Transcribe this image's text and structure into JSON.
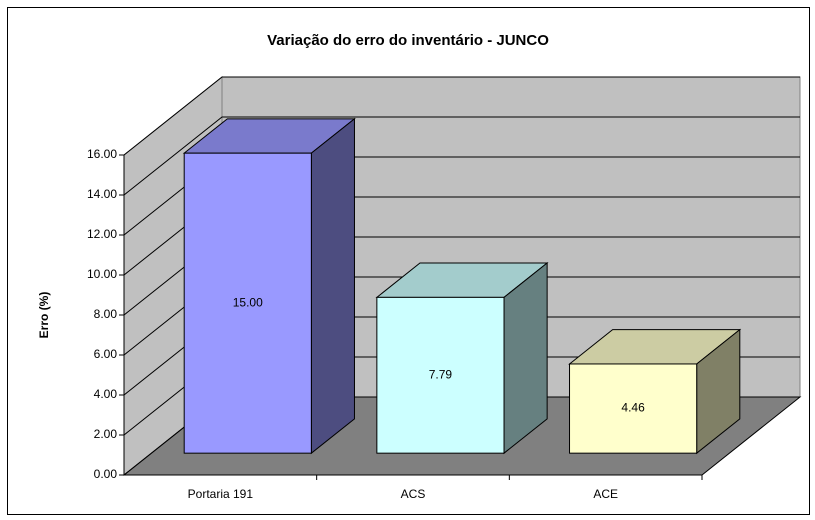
{
  "chart_data": {
    "type": "bar3d",
    "title": "Variação do erro do inventário - JUNCO",
    "ylabel": "Erro (%)",
    "categories": [
      "Portaria 191",
      "ACS",
      "ACE"
    ],
    "values": [
      15.0,
      7.79,
      4.46
    ],
    "value_labels": [
      "15.00",
      "7.79",
      "4.46"
    ],
    "colors": [
      "#9999ff",
      "#ccffff",
      "#ffffcc"
    ],
    "ylim": [
      0,
      16
    ],
    "yticks": [
      {
        "value": 0,
        "label": "0.00"
      },
      {
        "value": 2,
        "label": "2.00"
      },
      {
        "value": 4,
        "label": "4.00"
      },
      {
        "value": 6,
        "label": "6.00"
      },
      {
        "value": 8,
        "label": "8.00"
      },
      {
        "value": 10,
        "label": "10.00"
      },
      {
        "value": 12,
        "label": "12.00"
      },
      {
        "value": 14,
        "label": "14.00"
      },
      {
        "value": 16,
        "label": "16.00"
      }
    ],
    "grid": true
  }
}
